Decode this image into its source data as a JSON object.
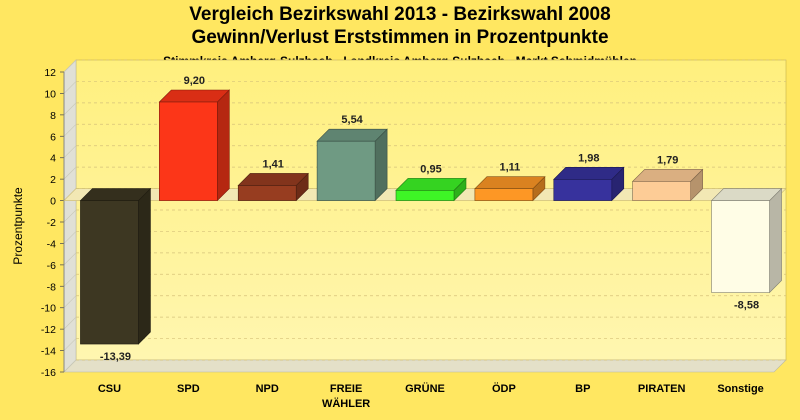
{
  "chart_data": {
    "type": "bar",
    "title": "Vergleich Bezirkswahl 2013 - Bezirkswahl 2008",
    "subtitle": "Gewinn/Verlust Erststimmen in Prozentpunkte",
    "subsubtitle": "Stimmkreis Amberg-Sulzbach - Landkreis Amberg-Sulzbach - Markt Schmidmühlen",
    "ylabel": "Prozentpunkte",
    "ylim": [
      -16,
      12
    ],
    "yticks": [
      12,
      10,
      8,
      6,
      4,
      2,
      0,
      -2,
      -4,
      -6,
      -8,
      -10,
      -12,
      -14,
      -16
    ],
    "ytick_labels": [
      "12",
      "10",
      "8",
      "6",
      "4",
      "2",
      "0",
      "-2",
      "-4",
      "-6",
      "-8",
      "-10",
      "-12",
      "-14",
      "-16"
    ],
    "grid": true,
    "categories": [
      {
        "label": "CSU",
        "label2": ""
      },
      {
        "label": "SPD",
        "label2": ""
      },
      {
        "label": "NPD",
        "label2": ""
      },
      {
        "label": "FREIE",
        "label2": "WÄHLER"
      },
      {
        "label": "GRÜNE",
        "label2": ""
      },
      {
        "label": "ÖDP",
        "label2": ""
      },
      {
        "label": "BP",
        "label2": ""
      },
      {
        "label": "PIRATEN",
        "label2": ""
      },
      {
        "label": "Sonstige",
        "label2": ""
      }
    ],
    "values": [
      -13.39,
      9.2,
      1.41,
      5.54,
      0.95,
      1.11,
      1.98,
      1.79,
      -8.58
    ],
    "value_labels": [
      "-13,39",
      "9,20",
      "1,41",
      "5,54",
      "0,95",
      "1,11",
      "1,98",
      "1,79",
      "-8,58"
    ],
    "colors": [
      "#3d3722",
      "#fc3618",
      "#973d20",
      "#6f9a83",
      "#3ef526",
      "#fd9725",
      "#37329d",
      "#fdcc96",
      "#fffde6"
    ]
  }
}
